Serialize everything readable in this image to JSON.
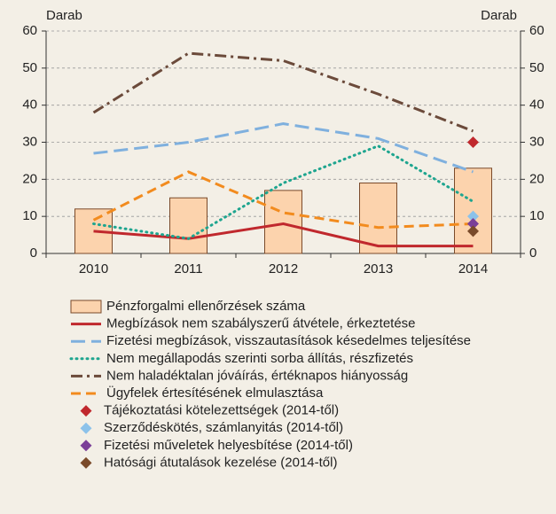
{
  "chart_data": {
    "type": "combo",
    "y_label": "Darab",
    "y2_label": "Darab",
    "categories": [
      "2010",
      "2011",
      "2012",
      "2013",
      "2014"
    ],
    "ylim": [
      0,
      60
    ],
    "yticks": [
      0,
      10,
      20,
      30,
      40,
      50,
      60
    ],
    "y2lim": [
      0,
      60
    ],
    "y2ticks": [
      0,
      10,
      20,
      30,
      40,
      50,
      60
    ],
    "grid": true,
    "legend": "bottom",
    "series": [
      {
        "name": "Pénzforgalmi ellenőrzések száma",
        "type": "bar",
        "color": "#fcd3ad",
        "edge": "#7a4a2a",
        "values": [
          12,
          15,
          17,
          19,
          23
        ]
      },
      {
        "name": "Megbízások nem szabályszerű átvétele, érkeztetése",
        "type": "line",
        "color": "#c0282d",
        "dash": "solid",
        "values": [
          6,
          4,
          8,
          2,
          2
        ]
      },
      {
        "name": "Fizetési megbízások, visszautasítások késedelmes teljesítése",
        "type": "line",
        "color": "#7fb0de",
        "dash": "long-dash",
        "values": [
          27,
          30,
          35,
          31,
          22
        ]
      },
      {
        "name": "Nem megállapodás szerinti sorba állítás, részfizetés",
        "type": "line",
        "color": "#1ea58f",
        "dash": "dot",
        "values": [
          8,
          4,
          19,
          29,
          14
        ]
      },
      {
        "name": "Nem haladéktalan jóváírás, értéknapos hiányosság",
        "type": "line",
        "color": "#6b4a3a",
        "dash": "dash-dot",
        "values": [
          38,
          54,
          52,
          43,
          33
        ]
      },
      {
        "name": "Ügyfelek értesítésének elmulasztása",
        "type": "line",
        "color": "#f28b1e",
        "dash": "dash",
        "values": [
          9,
          22,
          11,
          7,
          8
        ]
      },
      {
        "name": "Tájékoztatási kötelezettségek (2014-től)",
        "type": "scatter",
        "color": "#c0282d",
        "values": [
          null,
          null,
          null,
          null,
          30
        ]
      },
      {
        "name": "Szerződéskötés, számlanyitás (2014-től)",
        "type": "scatter",
        "color": "#8cc2ea",
        "values": [
          null,
          null,
          null,
          null,
          10
        ]
      },
      {
        "name": "Fizetési műveletek helyesbítése (2014-től)",
        "type": "scatter",
        "color": "#7b3f98",
        "values": [
          null,
          null,
          null,
          null,
          8
        ]
      },
      {
        "name": "Hatósági átutalások kezelése (2014-től)",
        "type": "scatter",
        "color": "#7a4a2a",
        "values": [
          null,
          null,
          null,
          null,
          6
        ]
      }
    ]
  }
}
